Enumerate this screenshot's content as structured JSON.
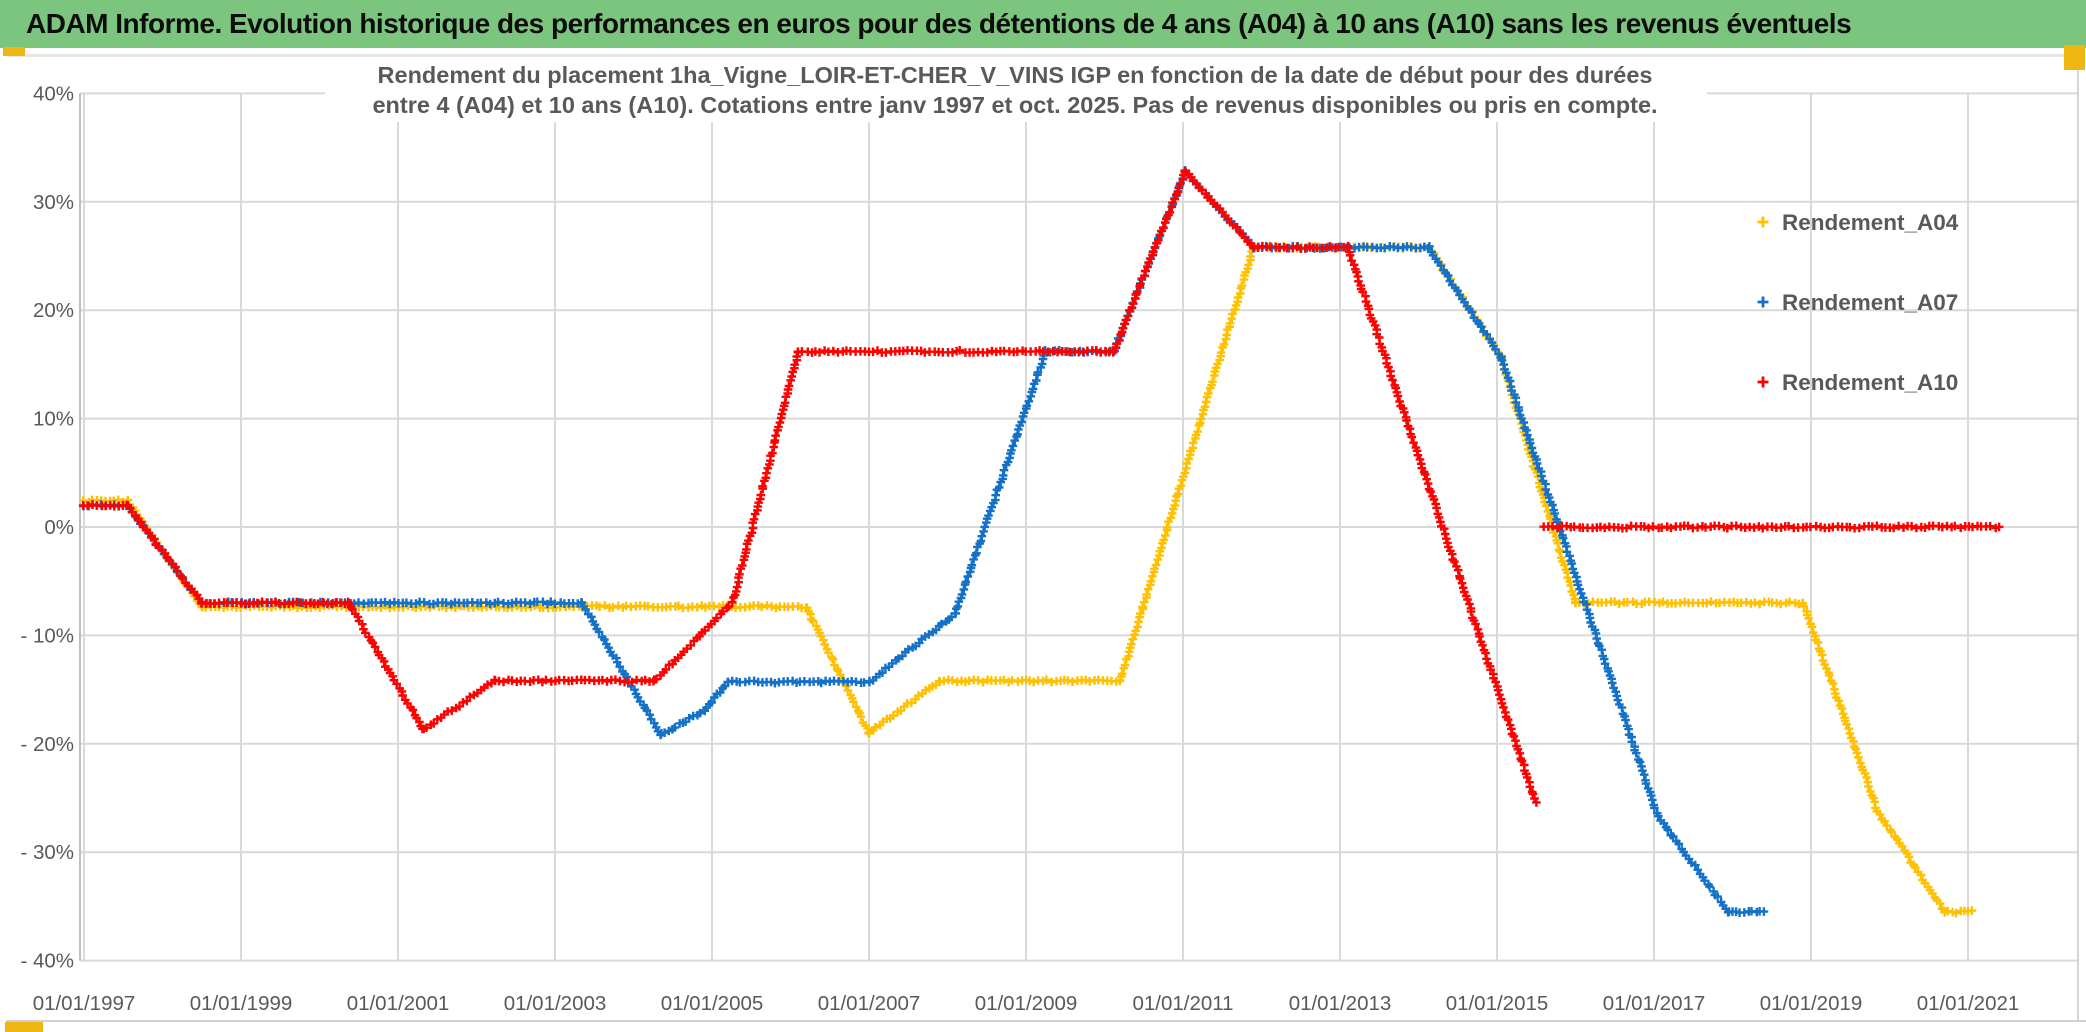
{
  "header": {
    "title": "ADAM Informe. Evolution historique des performances en euros pour des détentions de 4 ans (A04) à 10 ans (A10) sans les revenus éventuels"
  },
  "colors": {
    "header_bg": "#7CC57E",
    "accent": "#EFB713",
    "grid": "#D9D9D9",
    "axis": "#BFBFBF",
    "label_text": "#595959",
    "series_a04": "#FFC000",
    "series_a07": "#1371C8",
    "series_a10": "#FF0000"
  },
  "chart_data": {
    "type": "line",
    "marker": "plus",
    "grid": true,
    "title_lines": [
      "Rendement du placement 1ha_Vigne_LOIR-ET-CHER_V_VINS IGP en fonction de la date de début pour des durées",
      "entre 4 (A04) et 10 ans (A10). Cotations entre janv 1997 et oct. 2025. Pas de revenus disponibles ou pris en compte."
    ],
    "x_axis": {
      "tick_labels": [
        "01/01/1997",
        "01/01/1999",
        "01/01/2001",
        "01/01/2003",
        "01/01/2005",
        "01/01/2007",
        "01/01/2009",
        "01/01/2011",
        "01/01/2013",
        "01/01/2015",
        "01/01/2017",
        "01/01/2019",
        "01/01/2021"
      ],
      "tick_years": [
        1997,
        1999,
        2001,
        2003,
        2005,
        2007,
        2009,
        2011,
        2013,
        2015,
        2017,
        2019,
        2021
      ],
      "range_years": [
        1997,
        2022.6
      ]
    },
    "y_axis": {
      "tick_labels": [
        "40%",
        "30%",
        "20%",
        "10%",
        "0%",
        "- 10%",
        "- 20%",
        "- 30%",
        "- 40%"
      ],
      "tick_values": [
        40,
        30,
        20,
        10,
        0,
        -10,
        -20,
        -30,
        -40
      ],
      "min": -40,
      "max": 40,
      "unit": "%"
    },
    "legend": {
      "position": "right",
      "items": [
        {
          "label": "Rendement_A04",
          "color": "#FFC000"
        },
        {
          "label": "Rendement_A07",
          "color": "#1371C8"
        },
        {
          "label": "Rendement_A10",
          "color": "#FF0000"
        }
      ]
    },
    "series": [
      {
        "name": "Rendement_A04",
        "color": "#FFC000",
        "segments": [
          [
            [
              1997.0,
              2.4
            ],
            [
              1997.55,
              2.4
            ],
            [
              1998.5,
              -7.35
            ],
            [
              2006.2,
              -7.35
            ],
            [
              2007.0,
              -19.0
            ],
            [
              2007.9,
              -14.2
            ],
            [
              2010.2,
              -14.2
            ],
            [
              2011.9,
              25.8
            ],
            [
              2014.13,
              25.8
            ],
            [
              2015.05,
              15.7
            ],
            [
              2016.0,
              -7.0
            ],
            [
              2018.9,
              -7.0
            ],
            [
              2019.85,
              -26.2
            ],
            [
              2020.7,
              -35.5
            ],
            [
              2021.05,
              -35.5
            ]
          ]
        ]
      },
      {
        "name": "Rendement_A07",
        "color": "#1371C8",
        "segments": [
          [
            [
              1997.0,
              2.0
            ],
            [
              1997.55,
              2.0
            ],
            [
              1998.5,
              -7.0
            ],
            [
              2003.34,
              -7.0
            ],
            [
              2004.35,
              -19.1
            ],
            [
              2004.9,
              -17.0
            ],
            [
              2005.2,
              -14.3
            ],
            [
              2007.0,
              -14.3
            ],
            [
              2008.1,
              -8.0
            ],
            [
              2009.25,
              16.2
            ],
            [
              2010.12,
              16.2
            ],
            [
              2011.03,
              32.8
            ],
            [
              2011.9,
              25.8
            ],
            [
              2014.13,
              25.8
            ],
            [
              2015.05,
              15.7
            ],
            [
              2017.05,
              -26.7
            ],
            [
              2017.95,
              -35.5
            ],
            [
              2018.4,
              -35.5
            ]
          ]
        ]
      },
      {
        "name": "Rendement_A10",
        "color": "#FF0000",
        "segments": [
          [
            [
              1997.0,
              2.0
            ],
            [
              1997.55,
              2.0
            ],
            [
              1998.5,
              -7.0
            ],
            [
              2000.37,
              -7.0
            ],
            [
              2001.32,
              -18.7
            ],
            [
              2002.24,
              -14.2
            ],
            [
              2004.26,
              -14.2
            ],
            [
              2005.26,
              -7.0
            ],
            [
              2006.1,
              16.2
            ],
            [
              2010.12,
              16.2
            ],
            [
              2011.03,
              32.8
            ],
            [
              2011.9,
              25.8
            ],
            [
              2013.1,
              25.8
            ],
            [
              2015.5,
              -25.5
            ]
          ],
          [
            [
              2015.6,
              0.0
            ],
            [
              2021.4,
              0.0
            ]
          ]
        ]
      }
    ]
  }
}
